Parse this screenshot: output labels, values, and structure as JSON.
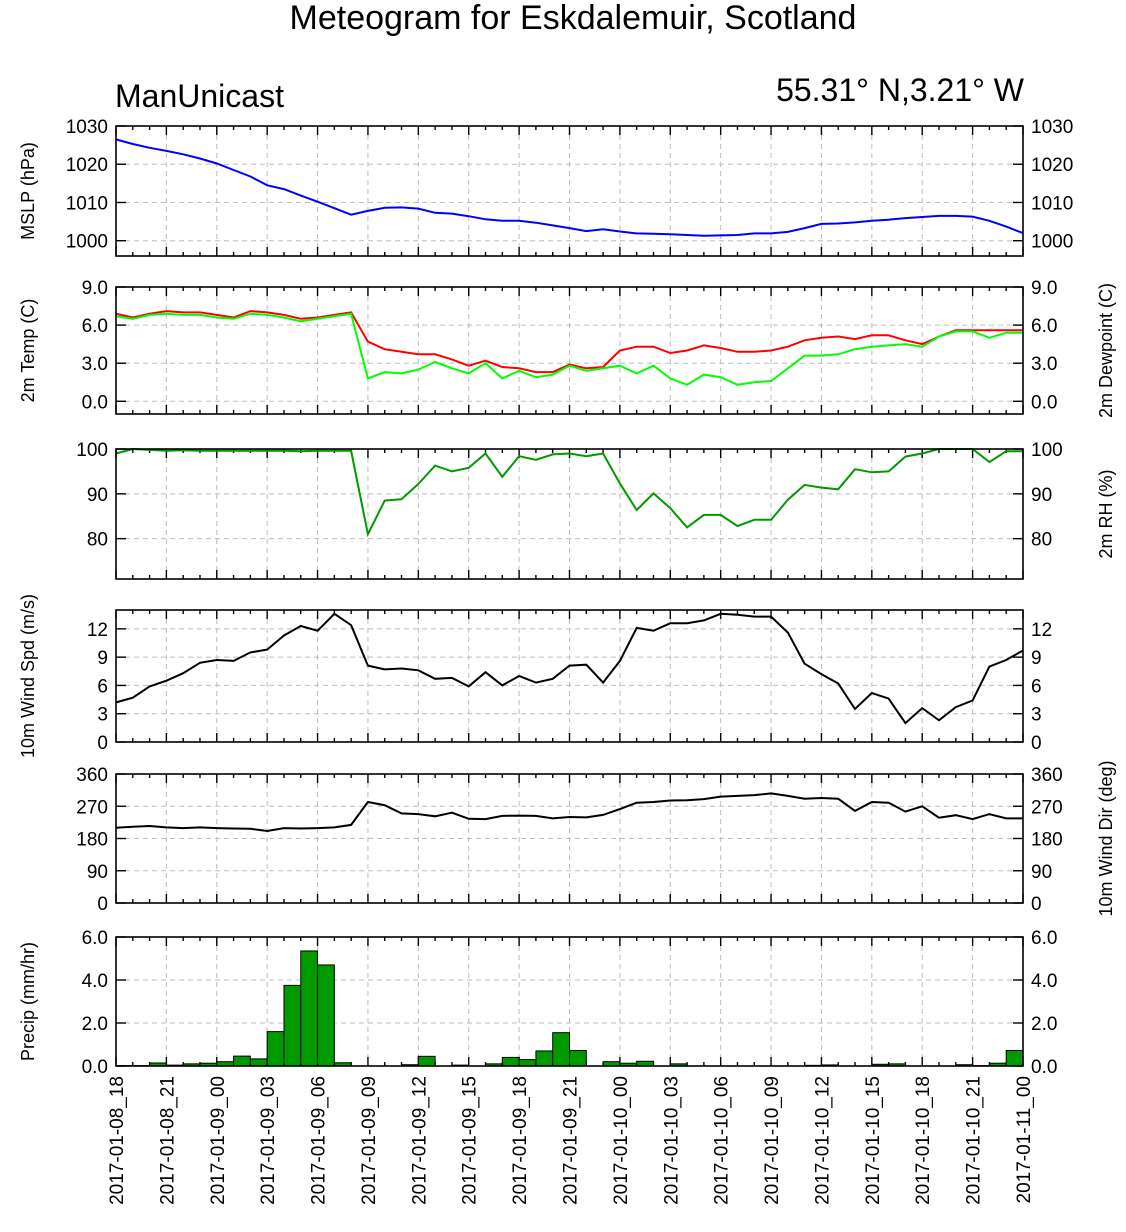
{
  "title": "Meteogram for Eskdalemuir, Scotland",
  "model": "ManUnicast",
  "location": "55.31° N,3.21° W",
  "colors": {
    "mslp": "#0000ff",
    "temp": "#ff0000",
    "dewpoint": "#00ff00",
    "rh": "#009900",
    "wind": "#000000",
    "precip_fill": "#009900",
    "grid": "#bdbdbd"
  },
  "x_ticks": [
    "2017-01-08_18",
    "2017-01-08_21",
    "2017-01-09_00",
    "2017-01-09_03",
    "2017-01-09_06",
    "2017-01-09_09",
    "2017-01-09_12",
    "2017-01-09_15",
    "2017-01-09_18",
    "2017-01-09_21",
    "2017-01-10_00",
    "2017-01-10_03",
    "2017-01-10_06",
    "2017-01-10_09",
    "2017-01-10_12",
    "2017-01-10_15",
    "2017-01-10_18",
    "2017-01-10_21",
    "2017-01-11_00"
  ],
  "chart_data": [
    {
      "type": "line",
      "ylabel": "MSLP (hPa)",
      "ylabel_right": "",
      "ylim": [
        996,
        1030
      ],
      "yticks": [
        1000,
        1010,
        1020,
        1030
      ],
      "tick_decimals": 0,
      "right_tick_labels": true,
      "x_range_hours": [
        0,
        54
      ],
      "series": [
        {
          "color_key": "mslp",
          "values": [
            1026.5,
            1025.3,
            1024.3,
            1023.5,
            1022.6,
            1021.5,
            1020.2,
            1018.5,
            1016.8,
            1014.5,
            1013.5,
            1011.8,
            1010.2,
            1008.5,
            1006.8,
            1007.8,
            1008.6,
            1008.7,
            1008.4,
            1007.3,
            1007.1,
            1006.4,
            1005.6,
            1005.2,
            1005.2,
            1004.7,
            1004.0,
            1003.3,
            1002.5,
            1003.0,
            1002.4,
            1001.9,
            1001.8,
            1001.7,
            1001.5,
            1001.3,
            1001.4,
            1001.5,
            1001.9,
            1001.9,
            1002.3,
            1003.3,
            1004.4,
            1004.5,
            1004.8,
            1005.2,
            1005.5,
            1005.9,
            1006.2,
            1006.5,
            1006.5,
            1006.3,
            1005.2,
            1003.7,
            1002.0
          ]
        }
      ]
    },
    {
      "type": "line",
      "ylabel": "2m Temp (C)",
      "ylabel_right": "2m Dewpoint (C)",
      "ylim": [
        -1.0,
        9.0
      ],
      "yticks": [
        0.0,
        3.0,
        6.0,
        9.0
      ],
      "tick_decimals": 1,
      "right_tick_labels": true,
      "x_range_hours": [
        0,
        54
      ],
      "series": [
        {
          "color_key": "temp",
          "values": [
            6.9,
            6.6,
            6.9,
            7.1,
            7.0,
            7.0,
            6.8,
            6.6,
            7.1,
            7.0,
            6.8,
            6.5,
            6.6,
            6.8,
            7.0,
            4.7,
            4.1,
            3.9,
            3.7,
            3.7,
            3.3,
            2.8,
            3.2,
            2.7,
            2.6,
            2.3,
            2.3,
            2.9,
            2.6,
            2.7,
            4.0,
            4.3,
            4.3,
            3.8,
            4.0,
            4.4,
            4.2,
            3.9,
            3.9,
            4.0,
            4.3,
            4.8,
            5.0,
            5.1,
            4.9,
            5.2,
            5.2,
            4.8,
            4.5,
            5.1,
            5.6,
            5.6,
            5.6,
            5.6,
            5.6
          ]
        },
        {
          "color_key": "dewpoint",
          "values": [
            6.7,
            6.5,
            6.8,
            6.9,
            6.8,
            6.8,
            6.6,
            6.5,
            6.9,
            6.8,
            6.6,
            6.3,
            6.5,
            6.7,
            6.9,
            1.8,
            2.3,
            2.2,
            2.5,
            3.1,
            2.6,
            2.2,
            3.0,
            1.8,
            2.4,
            1.9,
            2.1,
            2.8,
            2.4,
            2.6,
            2.8,
            2.2,
            2.8,
            1.8,
            1.3,
            2.1,
            1.9,
            1.3,
            1.5,
            1.6,
            2.6,
            3.6,
            3.6,
            3.7,
            4.1,
            4.3,
            4.4,
            4.5,
            4.3,
            5.1,
            5.5,
            5.5,
            5.0,
            5.4,
            5.4
          ]
        }
      ]
    },
    {
      "type": "line",
      "ylabel": "",
      "ylabel_right": "2m RH (%)",
      "ylim": [
        71,
        100
      ],
      "yticks": [
        80,
        90,
        100
      ],
      "tick_decimals": 0,
      "right_tick_labels": true,
      "x_range_hours": [
        0,
        54
      ],
      "series": [
        {
          "color_key": "rh",
          "values": [
            99.0,
            100,
            99.8,
            99.6,
            99.7,
            99.6,
            99.6,
            99.6,
            99.6,
            99.6,
            99.6,
            99.5,
            99.6,
            99.6,
            99.6,
            81.0,
            88.5,
            88.8,
            92.2,
            96.3,
            95.0,
            95.8,
            99.0,
            93.8,
            98.4,
            97.6,
            98.8,
            99.0,
            98.4,
            99.0,
            92.3,
            86.4,
            90.1,
            86.8,
            82.5,
            85.3,
            85.3,
            82.8,
            84.2,
            84.2,
            88.7,
            92.0,
            91.4,
            91.0,
            95.5,
            94.8,
            95.0,
            98.3,
            99.0,
            100,
            100,
            100,
            97.1,
            99.5,
            99.5
          ]
        }
      ]
    },
    {
      "type": "line",
      "ylabel": "10m Wind Spd (m/s)",
      "ylabel_right": "",
      "ylim": [
        0,
        14
      ],
      "yticks": [
        0,
        3,
        6,
        9,
        12
      ],
      "tick_decimals": 0,
      "right_tick_labels": true,
      "x_range_hours": [
        0,
        54
      ],
      "series": [
        {
          "color_key": "wind",
          "values": [
            4.2,
            4.7,
            5.9,
            6.5,
            7.3,
            8.4,
            8.7,
            8.6,
            9.5,
            9.8,
            11.3,
            12.3,
            11.8,
            13.6,
            12.4,
            8.1,
            7.7,
            7.8,
            7.6,
            6.7,
            6.8,
            5.9,
            7.4,
            6.0,
            7.0,
            6.3,
            6.7,
            8.1,
            8.2,
            6.3,
            8.6,
            12.1,
            11.8,
            12.6,
            12.6,
            12.9,
            13.6,
            13.5,
            13.3,
            13.3,
            11.6,
            8.3,
            7.2,
            6.2,
            3.5,
            5.2,
            4.6,
            2.0,
            3.6,
            2.3,
            3.7,
            4.4,
            8.0,
            8.7,
            9.7
          ]
        }
      ]
    },
    {
      "type": "line",
      "ylabel": "",
      "ylabel_right": "10m Wind Dir (deg)",
      "ylim": [
        0,
        360
      ],
      "yticks": [
        0,
        90,
        180,
        270,
        360
      ],
      "tick_decimals": 0,
      "right_tick_labels": true,
      "x_range_hours": [
        0,
        54
      ],
      "series": [
        {
          "color_key": "wind",
          "values": [
            210,
            213,
            215,
            211,
            209,
            211,
            209,
            208,
            207,
            201,
            209,
            208,
            209,
            211,
            218,
            282,
            273,
            250,
            248,
            242,
            252,
            235,
            234,
            243,
            244,
            243,
            236,
            240,
            239,
            246,
            262,
            280,
            282,
            286,
            287,
            290,
            297,
            299,
            301,
            306,
            299,
            291,
            293,
            291,
            257,
            282,
            280,
            255,
            270,
            238,
            245,
            234,
            248,
            236,
            236
          ]
        }
      ]
    },
    {
      "type": "bar",
      "ylabel": "Precip (mm/hr)",
      "ylabel_right": "",
      "ylim": [
        0,
        6.0
      ],
      "yticks": [
        0.0,
        2.0,
        4.0,
        6.0
      ],
      "tick_decimals": 1,
      "right_tick_labels": true,
      "x_range_hours": [
        0,
        54
      ],
      "series": [
        {
          "color_key": "precip_fill",
          "values": [
            0,
            0.02,
            0.02,
            0.14,
            0.04,
            0.1,
            0.13,
            0.2,
            0.46,
            0.33,
            1.6,
            3.75,
            5.35,
            4.7,
            0.15,
            0,
            0,
            0,
            0.06,
            0.45,
            0,
            0.04,
            0,
            0.1,
            0.4,
            0.3,
            0.7,
            1.55,
            0.72,
            0,
            0.2,
            0.13,
            0.22,
            0,
            0.1,
            0,
            0,
            0,
            0,
            0,
            0,
            0,
            0.03,
            0.05,
            0,
            0,
            0.08,
            0.1,
            0,
            0,
            0,
            0.06,
            0.02,
            0.13,
            0.72
          ]
        }
      ]
    }
  ]
}
